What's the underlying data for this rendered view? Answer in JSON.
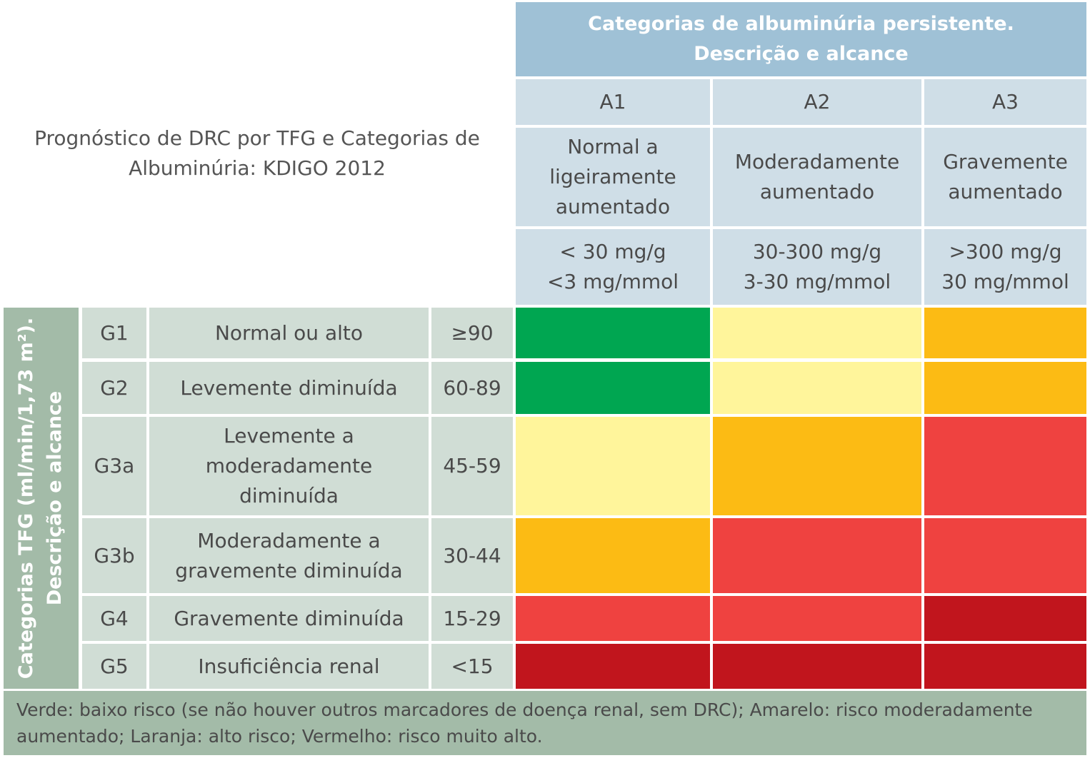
{
  "title": "Prognóstico de DRC por TFG e Categorias de Albuminúria: KDIGO 2012",
  "header": {
    "line1": "Categorias de albuminúria persistente.",
    "line2": "Descrição e alcance"
  },
  "columns": [
    {
      "code": "A1",
      "desc": "Normal a ligeiramente aumentado",
      "range1": "< 30 mg/g",
      "range2": "<3 mg/mmol"
    },
    {
      "code": "A2",
      "desc": "Moderadamente aumentado",
      "range1": "30-300 mg/g",
      "range2": "3-30 mg/mmol"
    },
    {
      "code": "A3",
      "desc": "Gravemente aumentado",
      "range1": ">300 mg/g",
      "range2": "30 mg/mmol"
    }
  ],
  "side_label": {
    "line1": "Categorias TFG (ml/min/1,73 m²).",
    "line2": "Descrição e alcance"
  },
  "rows": [
    {
      "code": "G1",
      "desc": "Normal ou alto",
      "range": "≥90",
      "risk": [
        "green",
        "yellow",
        "orange"
      ]
    },
    {
      "code": "G2",
      "desc": "Levemente diminuída",
      "range": "60-89",
      "risk": [
        "green",
        "yellow",
        "orange"
      ]
    },
    {
      "code": "G3a",
      "desc": "Levemente a moderadamente diminuída",
      "range": "45-59",
      "risk": [
        "yellow",
        "orange",
        "red"
      ]
    },
    {
      "code": "G3b",
      "desc": "Moderadamente  a gravemente diminuída",
      "range": "30-44",
      "risk": [
        "orange",
        "red",
        "red"
      ]
    },
    {
      "code": "G4",
      "desc": "Gravemente diminuída",
      "range": "15-29",
      "risk": [
        "red",
        "red",
        "darkred"
      ]
    },
    {
      "code": "G5",
      "desc": "Insuficiência renal",
      "range": "<15",
      "risk": [
        "darkred",
        "darkred",
        "darkred"
      ]
    }
  ],
  "risk_colors": {
    "green": "#00a651",
    "yellow": "#fff59b",
    "orange": "#fcbb14",
    "red": "#ef4240",
    "darkred": "#c1151d"
  },
  "footer": "Verde: baixo risco (se não houver outros marcadores de doença renal, sem DRC); Amarelo: risco moderadamente aumentado; Laranja: alto risco; Vermelho: risco muito alto."
}
